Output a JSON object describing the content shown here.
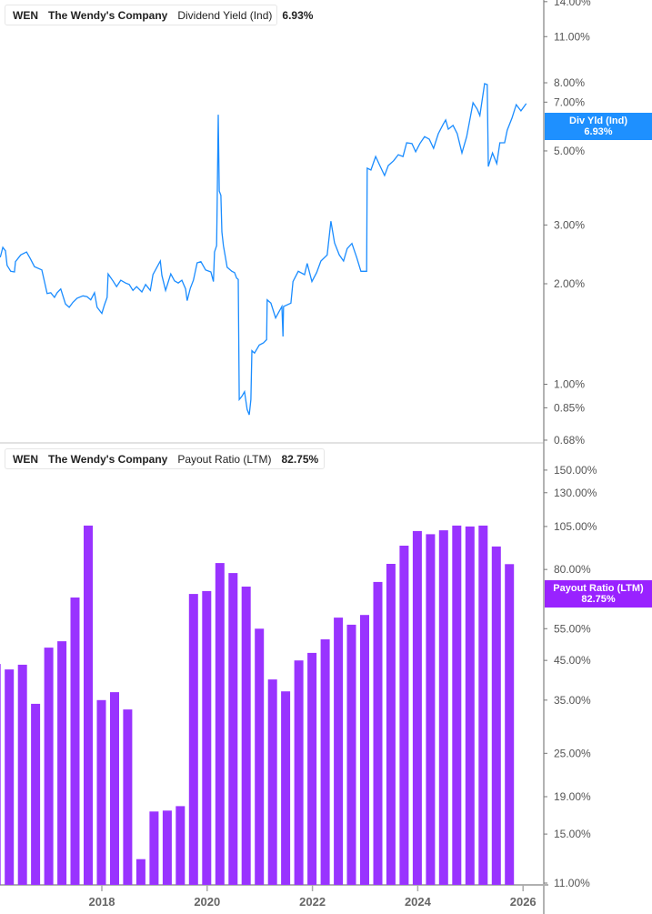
{
  "colors": {
    "yield": "#1a8cff",
    "payout": "#9933ff",
    "axis": "#9a9a9a",
    "separator": "#e2e2e2"
  },
  "legend_top": {
    "ticker": "WEN",
    "company": "The Wendy's Company",
    "metric": "Dividend Yield (Ind)",
    "value": "6.93%"
  },
  "legend_bottom": {
    "ticker": "WEN",
    "company": "The Wendy's Company",
    "metric": "Payout Ratio (LTM)",
    "value": "82.75%"
  },
  "tag_top": {
    "label": "Div Yld (Ind)",
    "value": "6.93%"
  },
  "tag_bottom": {
    "label": "Payout Ratio (LTM)",
    "value": "82.75%"
  },
  "chart_data": [
    {
      "type": "line",
      "title": "",
      "series_label": "Dividend Yield (Ind)",
      "y_scale": "log",
      "y_unit": "%",
      "ylim": [
        0.68,
        14
      ],
      "y_ticks": [
        "14.00%",
        "11.00%",
        "8.00%",
        "7.00%",
        "5.00%",
        "3.00%",
        "2.00%",
        "1.00%",
        "0.85%",
        "0.68%"
      ],
      "y_tick_values": [
        14,
        11,
        8,
        7,
        5,
        3,
        2,
        1,
        0.85,
        0.68
      ],
      "xlim": [
        2016.07,
        2026.3
      ],
      "points": [
        [
          2016.07,
          2.4
        ],
        [
          2016.12,
          2.57
        ],
        [
          2016.17,
          2.51
        ],
        [
          2016.2,
          2.27
        ],
        [
          2016.27,
          2.18
        ],
        [
          2016.34,
          2.17
        ],
        [
          2016.36,
          2.33
        ],
        [
          2016.46,
          2.44
        ],
        [
          2016.57,
          2.49
        ],
        [
          2016.64,
          2.38
        ],
        [
          2016.72,
          2.25
        ],
        [
          2016.86,
          2.2
        ],
        [
          2016.91,
          2.03
        ],
        [
          2016.96,
          1.87
        ],
        [
          2017.03,
          1.88
        ],
        [
          2017.1,
          1.82
        ],
        [
          2017.15,
          1.88
        ],
        [
          2017.22,
          1.93
        ],
        [
          2017.31,
          1.74
        ],
        [
          2017.38,
          1.7
        ],
        [
          2017.45,
          1.76
        ],
        [
          2017.53,
          1.81
        ],
        [
          2017.64,
          1.84
        ],
        [
          2017.72,
          1.83
        ],
        [
          2017.79,
          1.79
        ],
        [
          2017.86,
          1.88
        ],
        [
          2017.91,
          1.7
        ],
        [
          2018.0,
          1.63
        ],
        [
          2018.05,
          1.73
        ],
        [
          2018.1,
          1.82
        ],
        [
          2018.12,
          2.14
        ],
        [
          2018.21,
          2.04
        ],
        [
          2018.28,
          1.96
        ],
        [
          2018.36,
          2.05
        ],
        [
          2018.45,
          2.01
        ],
        [
          2018.52,
          1.99
        ],
        [
          2018.59,
          1.91
        ],
        [
          2018.66,
          1.96
        ],
        [
          2018.76,
          1.89
        ],
        [
          2018.83,
          1.99
        ],
        [
          2018.92,
          1.91
        ],
        [
          2018.97,
          2.13
        ],
        [
          2019.04,
          2.23
        ],
        [
          2019.11,
          2.34
        ],
        [
          2019.14,
          2.12
        ],
        [
          2019.21,
          1.91
        ],
        [
          2019.31,
          2.14
        ],
        [
          2019.38,
          2.04
        ],
        [
          2019.45,
          2.01
        ],
        [
          2019.52,
          2.05
        ],
        [
          2019.59,
          1.93
        ],
        [
          2019.62,
          1.78
        ],
        [
          2019.68,
          1.94
        ],
        [
          2019.74,
          2.05
        ],
        [
          2019.81,
          2.31
        ],
        [
          2019.88,
          2.33
        ],
        [
          2019.97,
          2.2
        ],
        [
          2020.07,
          2.17
        ],
        [
          2020.12,
          2.03
        ],
        [
          2020.14,
          2.49
        ],
        [
          2020.18,
          2.6
        ],
        [
          2020.19,
          3.43
        ],
        [
          2020.21,
          6.42
        ],
        [
          2020.23,
          3.79
        ],
        [
          2020.26,
          3.68
        ],
        [
          2020.28,
          2.86
        ],
        [
          2020.31,
          2.6
        ],
        [
          2020.38,
          2.24
        ],
        [
          2020.47,
          2.18
        ],
        [
          2020.52,
          2.16
        ],
        [
          2020.56,
          2.08
        ],
        [
          2020.59,
          2.06
        ],
        [
          2020.61,
          0.9
        ],
        [
          2020.66,
          0.92
        ],
        [
          2020.71,
          0.95
        ],
        [
          2020.76,
          0.84
        ],
        [
          2020.8,
          0.81
        ],
        [
          2020.83,
          0.9
        ],
        [
          2020.85,
          1.26
        ],
        [
          2020.9,
          1.24
        ],
        [
          2020.99,
          1.31
        ],
        [
          2021.07,
          1.33
        ],
        [
          2021.13,
          1.36
        ],
        [
          2021.14,
          1.79
        ],
        [
          2021.21,
          1.75
        ],
        [
          2021.3,
          1.58
        ],
        [
          2021.42,
          1.71
        ],
        [
          2021.44,
          1.39
        ],
        [
          2021.45,
          1.71
        ],
        [
          2021.59,
          1.75
        ],
        [
          2021.63,
          2.03
        ],
        [
          2021.73,
          2.18
        ],
        [
          2021.85,
          2.13
        ],
        [
          2021.9,
          2.3
        ],
        [
          2021.99,
          2.03
        ],
        [
          2022.08,
          2.16
        ],
        [
          2022.16,
          2.34
        ],
        [
          2022.28,
          2.44
        ],
        [
          2022.35,
          3.08
        ],
        [
          2022.42,
          2.65
        ],
        [
          2022.51,
          2.44
        ],
        [
          2022.59,
          2.34
        ],
        [
          2022.66,
          2.55
        ],
        [
          2022.75,
          2.64
        ],
        [
          2022.84,
          2.4
        ],
        [
          2022.92,
          2.18
        ],
        [
          2023.03,
          2.18
        ],
        [
          2023.04,
          4.44
        ],
        [
          2023.11,
          4.38
        ],
        [
          2023.2,
          4.81
        ],
        [
          2023.28,
          4.52
        ],
        [
          2023.37,
          4.22
        ],
        [
          2023.44,
          4.52
        ],
        [
          2023.54,
          4.67
        ],
        [
          2023.63,
          4.87
        ],
        [
          2023.72,
          4.81
        ],
        [
          2023.79,
          5.29
        ],
        [
          2023.89,
          5.26
        ],
        [
          2023.96,
          4.97
        ],
        [
          2024.04,
          5.26
        ],
        [
          2024.13,
          5.52
        ],
        [
          2024.22,
          5.42
        ],
        [
          2024.3,
          5.09
        ],
        [
          2024.39,
          5.63
        ],
        [
          2024.48,
          6.0
        ],
        [
          2024.53,
          6.19
        ],
        [
          2024.58,
          5.81
        ],
        [
          2024.67,
          5.96
        ],
        [
          2024.75,
          5.63
        ],
        [
          2024.84,
          4.93
        ],
        [
          2024.93,
          5.52
        ],
        [
          2025.05,
          6.97
        ],
        [
          2025.13,
          6.67
        ],
        [
          2025.18,
          6.38
        ],
        [
          2025.27,
          7.95
        ],
        [
          2025.32,
          7.9
        ],
        [
          2025.34,
          4.49
        ],
        [
          2025.42,
          4.93
        ],
        [
          2025.5,
          4.58
        ],
        [
          2025.56,
          5.29
        ],
        [
          2025.65,
          5.29
        ],
        [
          2025.7,
          5.77
        ],
        [
          2025.79,
          6.27
        ],
        [
          2025.87,
          6.88
        ],
        [
          2025.96,
          6.59
        ],
        [
          2026.06,
          6.93
        ]
      ]
    },
    {
      "type": "bar",
      "title": "",
      "series_label": "Payout Ratio (LTM)",
      "y_scale": "log",
      "y_unit": "%",
      "ylim": [
        11,
        150
      ],
      "y_ticks": [
        "150.00%",
        "130.00%",
        "105.00%",
        "80.00%",
        "55.00%",
        "45.00%",
        "35.00%",
        "25.00%",
        "19.00%",
        "15.00%",
        "11.00%"
      ],
      "y_tick_values": [
        150,
        130,
        105,
        80,
        55,
        45,
        35,
        25,
        19,
        15,
        11
      ],
      "x_ticks": [
        "2018",
        "2020",
        "2022",
        "2024",
        "2026"
      ],
      "x_tick_values": [
        2018,
        2020,
        2022,
        2024,
        2026
      ],
      "categories": [
        "2015Q4",
        "2016Q1",
        "2016Q2",
        "2016Q3",
        "2016Q4",
        "2017Q1",
        "2017Q2",
        "2017Q3",
        "2017Q4",
        "2018Q1",
        "2018Q2",
        "2018Q3",
        "2018Q4",
        "2019Q1",
        "2019Q2",
        "2019Q3",
        "2019Q4",
        "2020Q1",
        "2020Q2",
        "2020Q3",
        "2020Q4",
        "2021Q1",
        "2021Q2",
        "2021Q3",
        "2021Q4",
        "2022Q1",
        "2022Q2",
        "2022Q3",
        "2022Q4",
        "2023Q1",
        "2023Q2",
        "2023Q3",
        "2023Q4",
        "2024Q1",
        "2024Q2",
        "2024Q3",
        "2024Q4",
        "2025Q1",
        "2025Q2",
        "2025Q3"
      ],
      "values": [
        44,
        42.5,
        43.8,
        34.2,
        48.8,
        50.8,
        67,
        105.6,
        35,
        36.8,
        33,
        12.8,
        17.3,
        17.4,
        17.9,
        68.5,
        69.8,
        83.3,
        78.2,
        71.8,
        55,
        39.9,
        37,
        45,
        47.2,
        51.4,
        59,
        56.4,
        60,
        73.9,
        82.9,
        93,
        102,
        100,
        102.5,
        105.6,
        105,
        105.6,
        92.5,
        82.75
      ]
    }
  ]
}
